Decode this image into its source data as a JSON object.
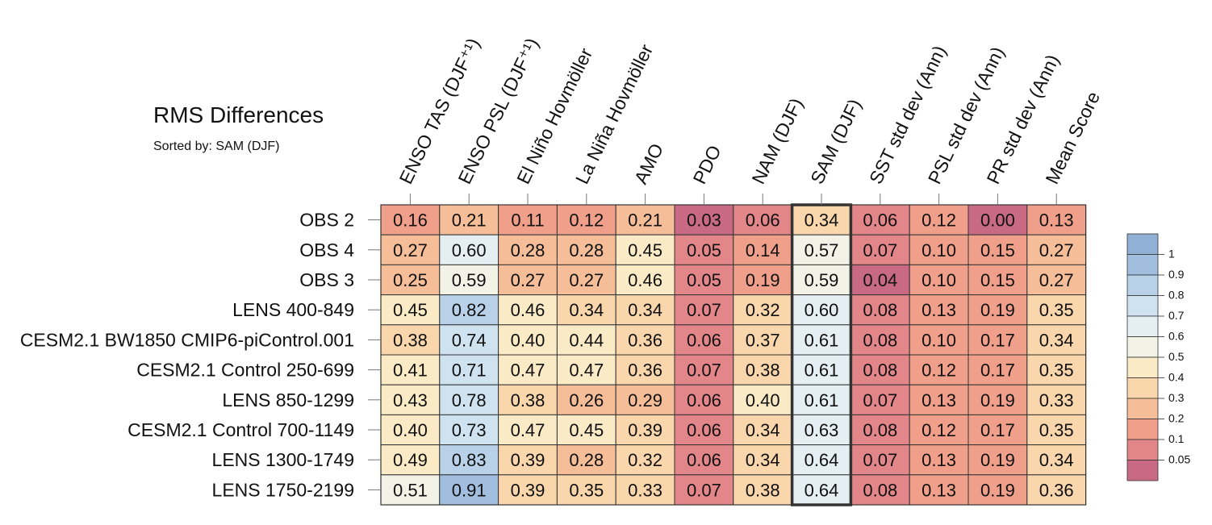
{
  "chart_data": {
    "type": "heatmap",
    "title": "RMS Differences",
    "subtitle": "Sorted by: SAM (DJF)",
    "columns": [
      "ENSO TAS (DJF⁺¹)",
      "ENSO PSL (DJF⁺¹)",
      "El Niño Hovmöller",
      "La Niña Hovmöller",
      "AMO",
      "PDO",
      "NAM (DJF)",
      "SAM (DJF)",
      "SST std dev (Ann)",
      "PSL std dev (Ann)",
      "PR std dev (Ann)",
      "Mean Score"
    ],
    "rows": [
      "OBS 2",
      "OBS 4",
      "OBS 3",
      "LENS 400-849",
      "CESM2.1 BW1850 CMIP6-piControl.001",
      "CESM2.1 Control 250-699",
      "LENS 850-1299",
      "CESM2.1 Control 700-1149",
      "LENS 1300-1749",
      "LENS 1750-2199"
    ],
    "values": [
      [
        "0.16",
        "0.21",
        "0.11",
        "0.12",
        "0.21",
        "0.03",
        "0.06",
        "0.34",
        "0.06",
        "0.12",
        "0.00",
        "0.13"
      ],
      [
        "0.27",
        "0.60",
        "0.28",
        "0.28",
        "0.45",
        "0.05",
        "0.14",
        "0.57",
        "0.07",
        "0.10",
        "0.15",
        "0.27"
      ],
      [
        "0.25",
        "0.59",
        "0.27",
        "0.27",
        "0.46",
        "0.05",
        "0.19",
        "0.59",
        "0.04",
        "0.10",
        "0.15",
        "0.27"
      ],
      [
        "0.45",
        "0.82",
        "0.46",
        "0.34",
        "0.34",
        "0.07",
        "0.32",
        "0.60",
        "0.08",
        "0.13",
        "0.19",
        "0.35"
      ],
      [
        "0.38",
        "0.74",
        "0.40",
        "0.44",
        "0.36",
        "0.06",
        "0.37",
        "0.61",
        "0.08",
        "0.10",
        "0.17",
        "0.34"
      ],
      [
        "0.41",
        "0.71",
        "0.47",
        "0.47",
        "0.36",
        "0.07",
        "0.38",
        "0.61",
        "0.08",
        "0.12",
        "0.17",
        "0.35"
      ],
      [
        "0.43",
        "0.78",
        "0.38",
        "0.26",
        "0.29",
        "0.06",
        "0.40",
        "0.61",
        "0.07",
        "0.13",
        "0.19",
        "0.33"
      ],
      [
        "0.40",
        "0.73",
        "0.47",
        "0.45",
        "0.39",
        "0.06",
        "0.34",
        "0.63",
        "0.08",
        "0.12",
        "0.17",
        "0.35"
      ],
      [
        "0.49",
        "0.83",
        "0.39",
        "0.28",
        "0.32",
        "0.06",
        "0.34",
        "0.64",
        "0.07",
        "0.13",
        "0.19",
        "0.34"
      ],
      [
        "0.51",
        "0.91",
        "0.39",
        "0.35",
        "0.33",
        "0.07",
        "0.38",
        "0.64",
        "0.08",
        "0.13",
        "0.19",
        "0.36"
      ]
    ],
    "sorted_column": "SAM (DJF)",
    "colorbar": {
      "levels": [
        "0.05",
        "0.1",
        "0.2",
        "0.3",
        "0.4",
        "0.5",
        "0.6",
        "0.7",
        "0.8",
        "0.9",
        "1"
      ],
      "colors": [
        "#c96a84",
        "#e3868a",
        "#f0a08a",
        "#f5bd98",
        "#f9d6ab",
        "#fbeac6",
        "#f3f2e6",
        "#e5eff3",
        "#cfe2ef",
        "#b8d1e8",
        "#a2bedf",
        "#90b0d6"
      ]
    }
  }
}
